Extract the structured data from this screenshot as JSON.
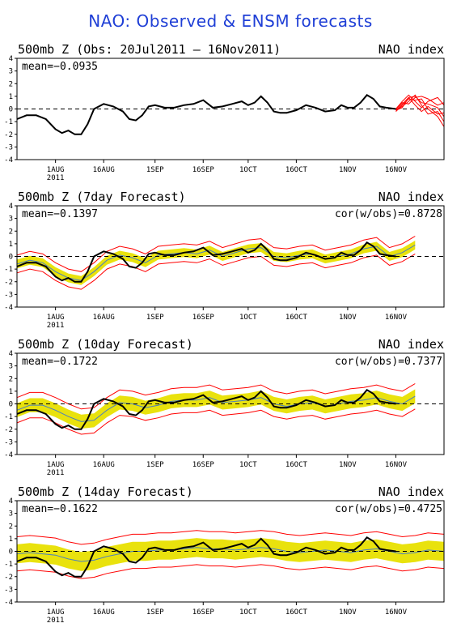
{
  "page_title": "NAO: Observed & ENSM forecasts",
  "colors": {
    "title": "#1f3fd6",
    "observed": "#000000",
    "ensemble": "#ff0000",
    "spread": "#e8e000",
    "ensemble_mean": "#4a7fc0",
    "axis": "#000000"
  },
  "x_ticks": [
    {
      "day": 12,
      "label": "1AUG",
      "sub": "2011"
    },
    {
      "day": 27,
      "label": "16AUG"
    },
    {
      "day": 43,
      "label": "1SEP"
    },
    {
      "day": 58,
      "label": "16SEP"
    },
    {
      "day": 72,
      "label": "1OCT"
    },
    {
      "day": 87,
      "label": "16OCT"
    },
    {
      "day": 103,
      "label": "1NOV"
    },
    {
      "day": 118,
      "label": "16NOV"
    }
  ],
  "chart_data": [
    {
      "type": "line",
      "title": "500mb Z (Obs: 20Jul2011 – 16Nov2011)",
      "right_title": "NAO index",
      "mean_text": "mean=−0.0935",
      "cor_text": "",
      "ylim": [
        -4,
        4
      ],
      "yticks": [
        -4,
        -3,
        -2,
        -1,
        0,
        1,
        2,
        3,
        4
      ],
      "xlim": [
        0,
        133
      ],
      "has_spread": false,
      "observed": {
        "x": [
          0,
          3,
          6,
          9,
          12,
          14,
          16,
          18,
          20,
          22,
          24,
          27,
          30,
          33,
          35,
          37,
          39,
          41,
          43,
          46,
          49,
          52,
          55,
          58,
          61,
          64,
          67,
          70,
          72,
          74,
          76,
          78,
          80,
          82,
          84,
          87,
          90,
          93,
          96,
          99,
          101,
          103,
          105,
          107,
          109,
          111,
          113,
          115,
          118
        ],
        "y": [
          -0.8,
          -0.5,
          -0.5,
          -0.8,
          -1.6,
          -1.9,
          -1.7,
          -2.0,
          -2.0,
          -1.2,
          0.0,
          0.4,
          0.2,
          -0.2,
          -0.8,
          -0.9,
          -0.5,
          0.2,
          0.3,
          0.1,
          0.1,
          0.3,
          0.4,
          0.7,
          0.1,
          0.2,
          0.4,
          0.6,
          0.3,
          0.5,
          1.0,
          0.5,
          -0.2,
          -0.3,
          -0.3,
          -0.1,
          0.3,
          0.1,
          -0.2,
          -0.1,
          0.3,
          0.1,
          0.1,
          0.5,
          1.1,
          0.8,
          0.2,
          0.1,
          0.0
        ]
      },
      "mean_line": null,
      "members": [
        {
          "x": [
            118,
            120,
            122,
            124,
            126,
            128,
            131,
            133
          ],
          "y": [
            -0.1,
            0.4,
            0.9,
            1.0,
            0.5,
            0.4,
            0.1,
            -0.6
          ]
        },
        {
          "x": [
            118,
            120,
            122,
            124,
            126,
            128,
            131,
            133
          ],
          "y": [
            0.0,
            0.6,
            1.1,
            0.6,
            0.1,
            0.6,
            0.9,
            0.3
          ]
        },
        {
          "x": [
            118,
            120,
            122,
            124,
            126,
            128,
            131,
            133
          ],
          "y": [
            -0.1,
            0.2,
            0.6,
            1.1,
            0.3,
            -0.4,
            -0.2,
            -1.0
          ]
        },
        {
          "x": [
            118,
            120,
            122,
            124,
            126,
            128,
            131,
            133
          ],
          "y": [
            -0.2,
            0.3,
            0.8,
            0.7,
            0.8,
            0.0,
            -0.6,
            -1.4
          ]
        },
        {
          "x": [
            118,
            120,
            122,
            124,
            126,
            128,
            131,
            133
          ],
          "y": [
            0.0,
            0.5,
            0.4,
            0.9,
            1.0,
            0.8,
            0.3,
            0.5
          ]
        },
        {
          "x": [
            118,
            120,
            122,
            124,
            126,
            128,
            131,
            133
          ],
          "y": [
            -0.1,
            0.1,
            0.9,
            0.3,
            -0.2,
            0.2,
            -0.4,
            -0.3
          ]
        }
      ]
    },
    {
      "type": "line",
      "title": "500mb Z (7day Forecast)",
      "right_title": "NAO index",
      "mean_text": "mean=−0.1397",
      "cor_text": "cor(w/obs)=0.8728",
      "ylim": [
        -4,
        4
      ],
      "yticks": [
        -4,
        -3,
        -2,
        -1,
        0,
        1,
        2,
        3,
        4
      ],
      "xlim": [
        0,
        133
      ],
      "has_spread": true,
      "observed": {
        "x": [
          0,
          3,
          6,
          9,
          12,
          14,
          16,
          18,
          20,
          22,
          24,
          27,
          30,
          33,
          35,
          37,
          39,
          41,
          43,
          46,
          49,
          52,
          55,
          58,
          61,
          64,
          67,
          70,
          72,
          74,
          76,
          78,
          80,
          82,
          84,
          87,
          90,
          93,
          96,
          99,
          101,
          103,
          105,
          107,
          109,
          111,
          113,
          115,
          118
        ],
        "y": [
          -0.8,
          -0.5,
          -0.5,
          -0.8,
          -1.6,
          -1.9,
          -1.7,
          -2.0,
          -2.0,
          -1.2,
          0.0,
          0.4,
          0.2,
          -0.2,
          -0.8,
          -0.9,
          -0.5,
          0.2,
          0.3,
          0.1,
          0.1,
          0.3,
          0.4,
          0.7,
          0.1,
          0.2,
          0.4,
          0.6,
          0.3,
          0.5,
          1.0,
          0.5,
          -0.2,
          -0.3,
          -0.3,
          -0.1,
          0.3,
          0.1,
          -0.2,
          -0.1,
          0.3,
          0.1,
          0.1,
          0.5,
          1.1,
          0.8,
          0.2,
          0.1,
          0.0
        ]
      },
      "mean_line": {
        "x": [
          0,
          4,
          8,
          12,
          16,
          20,
          24,
          28,
          32,
          36,
          40,
          44,
          48,
          52,
          56,
          60,
          64,
          68,
          72,
          76,
          80,
          84,
          88,
          92,
          96,
          100,
          104,
          108,
          112,
          116,
          120,
          124
        ],
        "y": [
          -0.6,
          -0.3,
          -0.5,
          -1.2,
          -1.7,
          -1.9,
          -1.2,
          -0.3,
          0.1,
          -0.1,
          -0.5,
          0.1,
          0.2,
          0.3,
          0.2,
          0.5,
          0.0,
          0.3,
          0.6,
          0.7,
          0.0,
          -0.1,
          0.1,
          0.2,
          -0.2,
          0.0,
          0.2,
          0.6,
          0.8,
          0.0,
          0.3,
          0.9
        ]
      },
      "spread_inner": 0.35,
      "spread_outer": 0.7,
      "members": []
    },
    {
      "type": "line",
      "title": "500mb Z (10day Forecast)",
      "right_title": "NAO index",
      "mean_text": "mean=−0.1722",
      "cor_text": "cor(w/obs)=0.7377",
      "ylim": [
        -4,
        4
      ],
      "yticks": [
        -4,
        -3,
        -2,
        -1,
        0,
        1,
        2,
        3,
        4
      ],
      "xlim": [
        0,
        133
      ],
      "has_spread": true,
      "observed": {
        "x": [
          0,
          3,
          6,
          9,
          12,
          14,
          16,
          18,
          20,
          22,
          24,
          27,
          30,
          33,
          35,
          37,
          39,
          41,
          43,
          46,
          49,
          52,
          55,
          58,
          61,
          64,
          67,
          70,
          72,
          74,
          76,
          78,
          80,
          82,
          84,
          87,
          90,
          93,
          96,
          99,
          101,
          103,
          105,
          107,
          109,
          111,
          113,
          115,
          118
        ],
        "y": [
          -0.8,
          -0.5,
          -0.5,
          -0.8,
          -1.6,
          -1.9,
          -1.7,
          -2.0,
          -2.0,
          -1.2,
          0.0,
          0.4,
          0.2,
          -0.2,
          -0.8,
          -0.9,
          -0.5,
          0.2,
          0.3,
          0.1,
          0.1,
          0.3,
          0.4,
          0.7,
          0.1,
          0.2,
          0.4,
          0.6,
          0.3,
          0.5,
          1.0,
          0.5,
          -0.2,
          -0.3,
          -0.3,
          -0.1,
          0.3,
          0.1,
          -0.2,
          -0.1,
          0.3,
          0.1,
          0.1,
          0.5,
          1.1,
          0.8,
          0.2,
          0.1,
          0.0
        ]
      },
      "mean_line": {
        "x": [
          0,
          4,
          8,
          12,
          16,
          20,
          24,
          28,
          32,
          36,
          40,
          44,
          48,
          52,
          56,
          60,
          64,
          68,
          72,
          76,
          80,
          84,
          88,
          92,
          96,
          100,
          104,
          108,
          112,
          116,
          120,
          124
        ],
        "y": [
          -0.5,
          -0.1,
          -0.1,
          -0.5,
          -1.0,
          -1.4,
          -1.3,
          -0.5,
          0.1,
          0.0,
          -0.3,
          -0.1,
          0.2,
          0.3,
          0.3,
          0.5,
          0.1,
          0.2,
          0.3,
          0.5,
          0.0,
          -0.2,
          0.0,
          0.1,
          -0.2,
          0.0,
          0.2,
          0.3,
          0.5,
          0.2,
          0.0,
          0.6
        ]
      },
      "spread_inner": 0.55,
      "spread_outer": 1.0,
      "members": []
    },
    {
      "type": "line",
      "title": "500mb Z (14day Forecast)",
      "right_title": "NAO index",
      "mean_text": "mean=−0.1622",
      "cor_text": "cor(w/obs)=0.4725",
      "ylim": [
        -4,
        4
      ],
      "yticks": [
        -4,
        -3,
        -2,
        -1,
        0,
        1,
        2,
        3,
        4
      ],
      "xlim": [
        0,
        133
      ],
      "has_spread": true,
      "observed": {
        "x": [
          0,
          3,
          6,
          9,
          12,
          14,
          16,
          18,
          20,
          22,
          24,
          27,
          30,
          33,
          35,
          37,
          39,
          41,
          43,
          46,
          49,
          52,
          55,
          58,
          61,
          64,
          67,
          70,
          72,
          74,
          76,
          78,
          80,
          82,
          84,
          87,
          90,
          93,
          96,
          99,
          101,
          103,
          105,
          107,
          109,
          111,
          113,
          115,
          118
        ],
        "y": [
          -0.8,
          -0.5,
          -0.5,
          -0.8,
          -1.6,
          -1.9,
          -1.7,
          -2.0,
          -2.0,
          -1.2,
          0.0,
          0.4,
          0.2,
          -0.2,
          -0.8,
          -0.9,
          -0.5,
          0.2,
          0.3,
          0.1,
          0.1,
          0.3,
          0.4,
          0.7,
          0.1,
          0.2,
          0.4,
          0.6,
          0.3,
          0.5,
          1.0,
          0.5,
          -0.2,
          -0.3,
          -0.3,
          -0.1,
          0.3,
          0.1,
          -0.2,
          -0.1,
          0.3,
          0.1,
          0.1,
          0.5,
          1.1,
          0.8,
          0.2,
          0.1,
          0.0
        ]
      },
      "mean_line": {
        "x": [
          0,
          4,
          8,
          12,
          16,
          20,
          24,
          28,
          32,
          36,
          40,
          44,
          48,
          52,
          56,
          60,
          64,
          68,
          72,
          76,
          80,
          84,
          88,
          92,
          96,
          100,
          104,
          108,
          112,
          116,
          120,
          124,
          128,
          133
        ],
        "y": [
          -0.2,
          -0.1,
          -0.2,
          -0.3,
          -0.6,
          -0.8,
          -0.7,
          -0.4,
          -0.2,
          0.0,
          0.0,
          0.1,
          0.1,
          0.2,
          0.3,
          0.2,
          0.2,
          0.1,
          0.2,
          0.3,
          0.2,
          0.0,
          -0.1,
          0.0,
          0.1,
          0.0,
          -0.1,
          0.1,
          0.2,
          0.0,
          -0.2,
          -0.1,
          0.1,
          0.0
        ]
      },
      "spread_inner": 0.75,
      "spread_outer": 1.35,
      "members": []
    }
  ]
}
